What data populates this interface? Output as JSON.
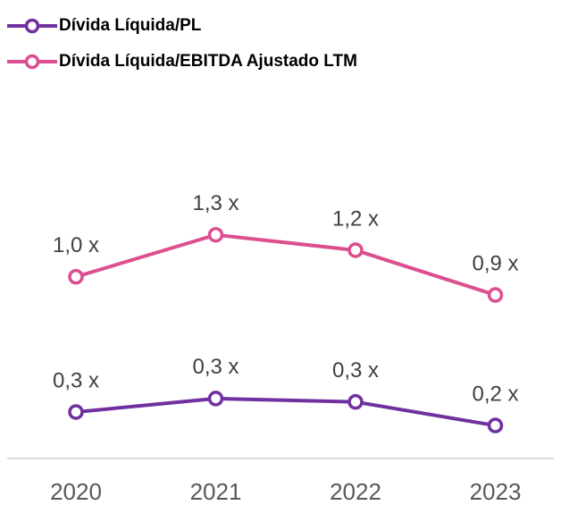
{
  "chart_data": {
    "type": "line",
    "categories": [
      "2020",
      "2021",
      "2022",
      "2023"
    ],
    "series": [
      {
        "name": "Dívida Líquida/PL",
        "color": "#7030a0",
        "axis": "y2",
        "values": [
          0.27,
          0.31,
          0.3,
          0.23
        ],
        "value_labels": [
          "0,3 x",
          "0,3 x",
          "0,3 x",
          "0,2 x"
        ]
      },
      {
        "name": "Dívida Líquida/EBITDA Ajustado LTM",
        "color": "#dc4f8f",
        "values": [
          1.03,
          1.33,
          1.22,
          0.9
        ],
        "value_labels": [
          "1,0 x",
          "1,3 x",
          "1,2 x",
          "0,9 x"
        ]
      }
    ],
    "ylim": [
      -0.25,
      1.75
    ],
    "y2lim": [
      0.14,
      0.97
    ],
    "grid": false
  }
}
